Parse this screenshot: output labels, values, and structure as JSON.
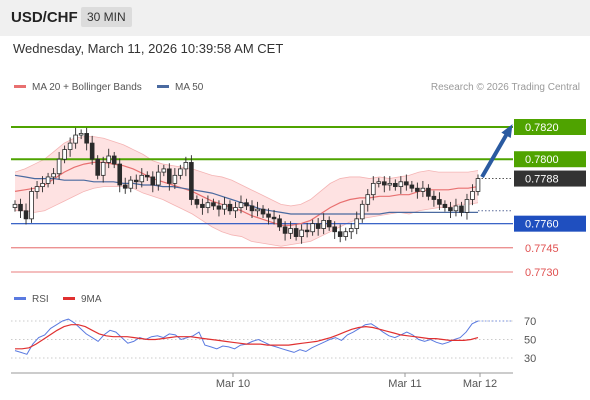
{
  "header": {
    "pair": "USD/CHF",
    "timeframe": "30 MIN",
    "datetime": "Wednesday, March 11, 2026 10:39:58 AM CET"
  },
  "legend": {
    "ma20": "MA 20 + Bollinger Bands",
    "ma50": "MA 50",
    "credit": "Research © 2026 Trading Central"
  },
  "rsi_legend": {
    "rsi": "RSI",
    "ma9": "9MA"
  },
  "colors": {
    "resistance": "#4fa300",
    "support": "#1f4fbf",
    "weak": "#e05050",
    "current": "#333333",
    "ma20": "#e87070",
    "ma50": "#4a6aa0",
    "band": "#fdd8d8",
    "arrow": "#2a5aa0",
    "rsi": "#5a7ae0",
    "rsi_ma": "#e03030"
  },
  "chart_data": [
    {
      "type": "candlestick",
      "title": "USD/CHF 30 MIN",
      "x_ticks": [
        "Mar 10",
        "Mar 11",
        "Mar 12"
      ],
      "ylim": [
        0.7722,
        0.7834
      ],
      "levels": [
        {
          "value": 0.782,
          "label": "0.7820",
          "kind": "resistance"
        },
        {
          "value": 0.78,
          "label": "0.7800",
          "kind": "resistance"
        },
        {
          "value": 0.7788,
          "label": "0.7788",
          "kind": "current"
        },
        {
          "value": 0.776,
          "label": "0.7760",
          "kind": "support"
        },
        {
          "value": 0.7745,
          "label": "0.7745",
          "kind": "weak"
        },
        {
          "value": 0.773,
          "label": "0.7730",
          "kind": "weak"
        }
      ],
      "close": [
        0.7772,
        0.7768,
        0.7763,
        0.778,
        0.7783,
        0.7785,
        0.7789,
        0.7791,
        0.78,
        0.7806,
        0.781,
        0.7815,
        0.7816,
        0.781,
        0.78,
        0.779,
        0.7798,
        0.7802,
        0.7797,
        0.7784,
        0.7782,
        0.7787,
        0.7786,
        0.779,
        0.7789,
        0.7784,
        0.7792,
        0.7794,
        0.7785,
        0.779,
        0.7794,
        0.7798,
        0.7775,
        0.7772,
        0.777,
        0.7773,
        0.7771,
        0.7769,
        0.7772,
        0.7768,
        0.777,
        0.7773,
        0.7771,
        0.7768,
        0.7769,
        0.7766,
        0.7764,
        0.7763,
        0.7758,
        0.7754,
        0.7757,
        0.7752,
        0.7756,
        0.7755,
        0.776,
        0.7757,
        0.7762,
        0.7758,
        0.7755,
        0.7752,
        0.7755,
        0.7757,
        0.7763,
        0.7772,
        0.7778,
        0.7785,
        0.7786,
        0.7784,
        0.7785,
        0.7783,
        0.7786,
        0.7784,
        0.7782,
        0.778,
        0.7782,
        0.7777,
        0.7775,
        0.7772,
        0.777,
        0.7768,
        0.7771,
        0.7767,
        0.7775,
        0.778,
        0.7788
      ],
      "ma20": [
        0.778,
        0.7781,
        0.7782,
        0.7784,
        0.7788,
        0.7792,
        0.7795,
        0.7797,
        0.7798,
        0.7798,
        0.7797,
        0.7796,
        0.7794,
        0.7791,
        0.7788,
        0.7786,
        0.7784,
        0.7782,
        0.778,
        0.7777,
        0.7774,
        0.7772,
        0.777,
        0.7768,
        0.7765,
        0.7763,
        0.7761,
        0.7759,
        0.7759,
        0.776,
        0.7762,
        0.7766,
        0.777,
        0.7773,
        0.7775,
        0.7776,
        0.7776,
        0.7777,
        0.7777,
        0.7778,
        0.7778,
        0.778,
        0.7781,
        0.7781,
        0.7781,
        0.7782,
        0.7782,
        0.7783
      ],
      "ma50": [
        0.779,
        0.7789,
        0.7788,
        0.7788,
        0.7788,
        0.7787,
        0.7787,
        0.7787,
        0.7786,
        0.7786,
        0.7786,
        0.7785,
        0.7785,
        0.7784,
        0.7784,
        0.7783,
        0.7783,
        0.7782,
        0.7781,
        0.778,
        0.7779,
        0.7777,
        0.7775,
        0.7773,
        0.7771,
        0.7769,
        0.7768,
        0.7767,
        0.7766,
        0.7766,
        0.7766,
        0.7766,
        0.7766,
        0.7766,
        0.7766,
        0.7766,
        0.7766,
        0.7766,
        0.7767,
        0.7767,
        0.7767,
        0.7767,
        0.7767,
        0.7767,
        0.7767,
        0.7767,
        0.7767,
        0.7767
      ],
      "bb_width": [
        12,
        13,
        15,
        16,
        17,
        18,
        18,
        17,
        16,
        15,
        14,
        13,
        12,
        12,
        11,
        11,
        12,
        13,
        14,
        15,
        16,
        17,
        17,
        16,
        16,
        15,
        14,
        13,
        12,
        12,
        13,
        14,
        15,
        15,
        14,
        13,
        12,
        12,
        11,
        11,
        12,
        12,
        12,
        11,
        11,
        10,
        10,
        10
      ],
      "rsi": [
        38,
        36,
        34,
        45,
        52,
        55,
        62,
        66,
        70,
        72,
        68,
        62,
        56,
        52,
        48,
        55,
        60,
        58,
        52,
        46,
        48,
        52,
        50,
        53,
        54,
        52,
        56,
        55,
        50,
        52,
        54,
        58,
        44,
        42,
        40,
        43,
        42,
        40,
        44,
        45,
        48,
        50,
        47,
        44,
        42,
        40,
        38,
        36,
        39,
        37,
        41,
        44,
        47,
        50,
        52,
        49,
        55,
        58,
        62,
        66,
        67,
        63,
        58,
        54,
        52,
        55,
        58,
        55,
        50,
        48,
        50,
        47,
        45,
        47,
        50,
        52,
        58,
        67,
        70
      ],
      "rsi_ma": [
        40,
        40,
        41,
        45,
        50,
        55,
        60,
        64,
        66,
        66,
        64,
        60,
        56,
        54,
        53,
        53,
        53,
        52,
        51,
        50,
        50,
        51,
        52,
        53,
        53,
        53,
        52,
        51,
        50,
        49,
        48,
        47,
        46,
        45,
        45,
        45,
        44,
        44,
        44,
        44,
        45,
        46,
        47,
        48,
        50,
        52,
        55,
        58,
        61,
        63,
        64,
        63,
        61,
        59,
        57,
        55,
        54,
        53,
        52,
        51,
        51,
        50,
        49,
        49,
        49,
        50,
        52
      ],
      "rsi_levels": [
        70,
        50,
        30
      ],
      "rsi_ylim": [
        20,
        80
      ]
    }
  ]
}
